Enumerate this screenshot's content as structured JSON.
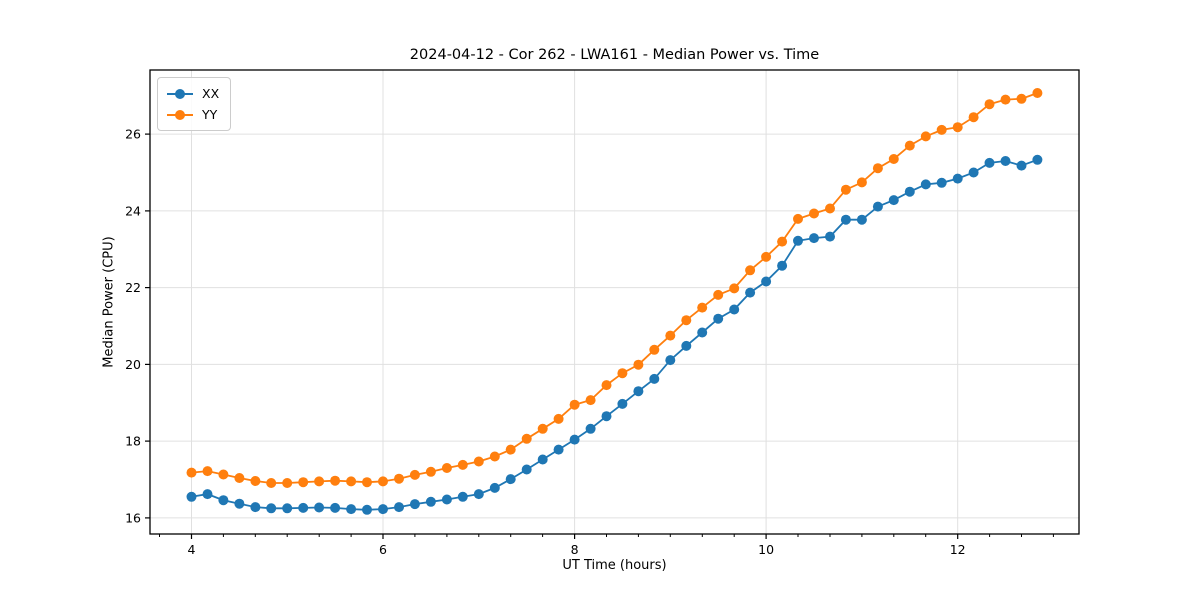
{
  "chart_data": {
    "type": "line",
    "title": "2024-04-12 - Cor 262 - LWA161 - Median Power vs. Time",
    "xlabel": "UT Time (hours)",
    "ylabel": "Median Power (CPU)",
    "xlim": [
      3.567,
      13.267
    ],
    "ylim": [
      15.58,
      27.67
    ],
    "xticks": [
      4,
      6,
      8,
      10,
      12
    ],
    "yticks": [
      16,
      18,
      20,
      22,
      24,
      26
    ],
    "minor_xtick_step": 0.3333,
    "grid": true,
    "grid_color": "#e0e0e0",
    "legend_position": "upper-left",
    "x": [
      4,
      4.167,
      4.333,
      4.5,
      4.667,
      4.833,
      5,
      5.167,
      5.333,
      5.5,
      5.667,
      5.833,
      6,
      6.167,
      6.333,
      6.5,
      6.667,
      6.833,
      7,
      7.167,
      7.333,
      7.5,
      7.667,
      7.833,
      8,
      8.167,
      8.333,
      8.5,
      8.667,
      8.833,
      9,
      9.167,
      9.333,
      9.5,
      9.667,
      9.833,
      10,
      10.167,
      10.333,
      10.5,
      10.667,
      10.833,
      11,
      11.167,
      11.333,
      11.5,
      11.667,
      11.833,
      12,
      12.167,
      12.333,
      12.5,
      12.667,
      12.833
    ],
    "series": [
      {
        "name": "XX",
        "color": "#1f77b4",
        "values": [
          16.55,
          16.62,
          16.46,
          16.37,
          16.28,
          16.25,
          16.25,
          16.26,
          16.27,
          16.26,
          16.23,
          16.21,
          16.23,
          16.28,
          16.36,
          16.42,
          16.48,
          16.55,
          16.62,
          16.78,
          17.01,
          17.26,
          17.52,
          17.78,
          18.04,
          18.32,
          18.65,
          18.97,
          19.3,
          19.62,
          20.11,
          20.48,
          20.83,
          21.19,
          21.43,
          21.87,
          22.16,
          22.57,
          23.22,
          23.29,
          23.33,
          23.77,
          23.77,
          24.11,
          24.28,
          24.5,
          24.69,
          24.73,
          24.84,
          25.0,
          25.25,
          25.3,
          25.18,
          25.33
        ]
      },
      {
        "name": "YY",
        "color": "#ff7f0e",
        "values": [
          17.18,
          17.22,
          17.13,
          17.04,
          16.96,
          16.91,
          16.91,
          16.93,
          16.95,
          16.97,
          16.95,
          16.93,
          16.95,
          17.02,
          17.12,
          17.2,
          17.3,
          17.38,
          17.47,
          17.6,
          17.78,
          18.06,
          18.32,
          18.58,
          18.95,
          19.07,
          19.46,
          19.77,
          19.99,
          20.38,
          20.75,
          21.15,
          21.48,
          21.81,
          21.98,
          22.45,
          22.8,
          23.2,
          23.79,
          23.93,
          24.06,
          24.55,
          24.74,
          25.11,
          25.35,
          25.7,
          25.94,
          26.11,
          26.18,
          26.44,
          26.78,
          26.9,
          26.92,
          27.07
        ]
      }
    ]
  }
}
